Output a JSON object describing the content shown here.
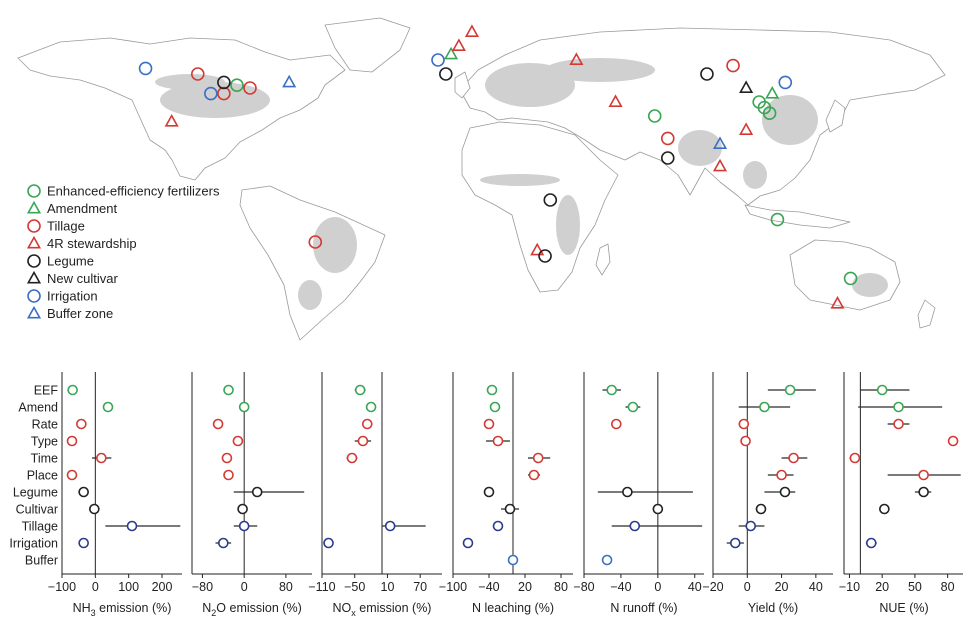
{
  "legend": {
    "items": [
      {
        "label": "Enhanced-efficiency fertilizers",
        "shape": "circle",
        "color": "#3aa655"
      },
      {
        "label": "Amendment",
        "shape": "triangle",
        "color": "#3aa655"
      },
      {
        "label": "Tillage",
        "shape": "circle",
        "color": "#d33a34"
      },
      {
        "label": "4R stewardship",
        "shape": "triangle",
        "color": "#d33a34"
      },
      {
        "label": "Legume",
        "shape": "circle",
        "color": "#222222"
      },
      {
        "label": "New cultivar",
        "shape": "triangle",
        "color": "#222222"
      },
      {
        "label": "Irrigation",
        "shape": "circle",
        "color": "#3a6fc4"
      },
      {
        "label": "Buffer zone",
        "shape": "triangle",
        "color": "#3a6fc4"
      }
    ]
  },
  "colors": {
    "green": "#3aa655",
    "red": "#d33a34",
    "black": "#222222",
    "blue": "#3a6fc4",
    "navy": "#2b3a8f",
    "land": "#ffffff",
    "border": "#9a9a9a",
    "cropland": "#c8c8c8"
  },
  "map_markers": [
    {
      "group": "green",
      "shape": "circle",
      "lon": 115,
      "lat": 35
    },
    {
      "group": "green",
      "shape": "circle",
      "lon": 117,
      "lat": 33
    },
    {
      "group": "green",
      "shape": "circle",
      "lon": 119,
      "lat": 31
    },
    {
      "group": "green",
      "shape": "triangle",
      "lon": 120,
      "lat": 38
    },
    {
      "group": "green",
      "shape": "circle",
      "lon": 75,
      "lat": 30
    },
    {
      "group": "green",
      "shape": "circle",
      "lon": -85,
      "lat": 41
    },
    {
      "group": "green",
      "shape": "triangle",
      "lon": -3,
      "lat": 52
    },
    {
      "group": "green",
      "shape": "circle",
      "lon": 150,
      "lat": -28
    },
    {
      "group": "green",
      "shape": "circle",
      "lon": 122,
      "lat": -7
    },
    {
      "group": "red",
      "shape": "circle",
      "lon": -100,
      "lat": 45
    },
    {
      "group": "red",
      "shape": "circle",
      "lon": -90,
      "lat": 38
    },
    {
      "group": "red",
      "shape": "circle",
      "lon": -80,
      "lat": 40
    },
    {
      "group": "red",
      "shape": "circle",
      "lon": -55,
      "lat": -15
    },
    {
      "group": "red",
      "shape": "circle",
      "lon": 105,
      "lat": 48
    },
    {
      "group": "red",
      "shape": "circle",
      "lon": 80,
      "lat": 22
    },
    {
      "group": "red",
      "shape": "triangle",
      "lon": 5,
      "lat": 60
    },
    {
      "group": "red",
      "shape": "triangle",
      "lon": 0,
      "lat": 55
    },
    {
      "group": "red",
      "shape": "triangle",
      "lon": 45,
      "lat": 50
    },
    {
      "group": "red",
      "shape": "triangle",
      "lon": 60,
      "lat": 35
    },
    {
      "group": "red",
      "shape": "triangle",
      "lon": 110,
      "lat": 25
    },
    {
      "group": "red",
      "shape": "triangle",
      "lon": 100,
      "lat": 12
    },
    {
      "group": "red",
      "shape": "triangle",
      "lon": -110,
      "lat": 28
    },
    {
      "group": "red",
      "shape": "triangle",
      "lon": 30,
      "lat": -18
    },
    {
      "group": "red",
      "shape": "triangle",
      "lon": 145,
      "lat": -37
    },
    {
      "group": "black",
      "shape": "circle",
      "lon": -90,
      "lat": 42
    },
    {
      "group": "black",
      "shape": "circle",
      "lon": 35,
      "lat": 0
    },
    {
      "group": "black",
      "shape": "circle",
      "lon": 33,
      "lat": -20
    },
    {
      "group": "black",
      "shape": "circle",
      "lon": 80,
      "lat": 15
    },
    {
      "group": "black",
      "shape": "circle",
      "lon": 95,
      "lat": 45
    },
    {
      "group": "black",
      "shape": "circle",
      "lon": -5,
      "lat": 45
    },
    {
      "group": "black",
      "shape": "triangle",
      "lon": 110,
      "lat": 40
    },
    {
      "group": "blue",
      "shape": "circle",
      "lon": -120,
      "lat": 47
    },
    {
      "group": "blue",
      "shape": "circle",
      "lon": -95,
      "lat": 38
    },
    {
      "group": "blue",
      "shape": "circle",
      "lon": -8,
      "lat": 50
    },
    {
      "group": "blue",
      "shape": "circle",
      "lon": 125,
      "lat": 42
    },
    {
      "group": "blue",
      "shape": "triangle",
      "lon": -65,
      "lat": 42
    },
    {
      "group": "blue",
      "shape": "triangle",
      "lon": 100,
      "lat": 20
    }
  ],
  "chart_data": {
    "type": "scatter",
    "subtype": "forest-plot",
    "categories": [
      "EEF",
      "Amend",
      "Rate",
      "Type",
      "Time",
      "Place",
      "Legume",
      "Cultivar",
      "Tillage",
      "Irrigation",
      "Buffer"
    ],
    "category_colors": [
      "green",
      "green",
      "red",
      "red",
      "red",
      "red",
      "black",
      "black",
      "navy",
      "navy",
      "blue"
    ],
    "panels": [
      {
        "xlabel_pre": "NH",
        "xlabel_sub": "3",
        "xlabel_post": " emission (%)",
        "xlim": [
          -100,
          260
        ],
        "ticks": [
          -100,
          0,
          100,
          200
        ],
        "tick_labels": [
          "-100",
          "0",
          "100",
          "200"
        ],
        "points": [
          {
            "cat": "EEF",
            "mean": -68,
            "lo": -78,
            "hi": -58
          },
          {
            "cat": "Amend",
            "mean": 38,
            "lo": 33,
            "hi": 43
          },
          {
            "cat": "Rate",
            "mean": -42,
            "lo": -48,
            "hi": -36
          },
          {
            "cat": "Type",
            "mean": -70,
            "lo": -76,
            "hi": -64
          },
          {
            "cat": "Time",
            "mean": 18,
            "lo": -10,
            "hi": 48
          },
          {
            "cat": "Place",
            "mean": -70,
            "lo": -76,
            "hi": -64
          },
          {
            "cat": "Legume",
            "mean": -35,
            "lo": -40,
            "hi": -30
          },
          {
            "cat": "Cultivar",
            "mean": -3,
            "lo": -6,
            "hi": 0
          },
          {
            "cat": "Tillage",
            "mean": 110,
            "lo": 30,
            "hi": 255
          },
          {
            "cat": "Irrigation",
            "mean": -35,
            "lo": -48,
            "hi": -22
          }
        ]
      },
      {
        "xlabel_pre": "N",
        "xlabel_sub": "2",
        "xlabel_post": "O emission (%)",
        "xlim": [
          -100,
          130
        ],
        "ticks": [
          -80,
          0,
          80
        ],
        "tick_labels": [
          "-80",
          "0",
          "80"
        ],
        "points": [
          {
            "cat": "EEF",
            "mean": -30,
            "lo": -34,
            "hi": -26
          },
          {
            "cat": "Amend",
            "mean": 0,
            "lo": -8,
            "hi": 8
          },
          {
            "cat": "Rate",
            "mean": -50,
            "lo": -55,
            "hi": -45
          },
          {
            "cat": "Type",
            "mean": -12,
            "lo": -18,
            "hi": -6
          },
          {
            "cat": "Time",
            "mean": -33,
            "lo": -40,
            "hi": -26
          },
          {
            "cat": "Place",
            "mean": -30,
            "lo": -38,
            "hi": -22
          },
          {
            "cat": "Legume",
            "mean": 25,
            "lo": -20,
            "hi": 115
          },
          {
            "cat": "Cultivar",
            "mean": -3,
            "lo": -7,
            "hi": 1
          },
          {
            "cat": "Tillage",
            "mean": 0,
            "lo": -20,
            "hi": 25
          },
          {
            "cat": "Irrigation",
            "mean": -40,
            "lo": -55,
            "hi": -25
          }
        ]
      },
      {
        "xlabel_pre": "NO",
        "xlabel_sub": "x",
        "xlabel_post": " emission (%)",
        "xlim": [
          -110,
          110
        ],
        "ticks": [
          -110,
          -50,
          10,
          70
        ],
        "tick_labels": [
          "-110",
          "-50",
          "10",
          "70"
        ],
        "points": [
          {
            "cat": "EEF",
            "mean": -40,
            "lo": -50,
            "hi": -30
          },
          {
            "cat": "Amend",
            "mean": -20,
            "lo": -26,
            "hi": -14
          },
          {
            "cat": "Rate",
            "mean": -27,
            "lo": -33,
            "hi": -20
          },
          {
            "cat": "Type",
            "mean": -35,
            "lo": -50,
            "hi": -20
          },
          {
            "cat": "Time",
            "mean": -55,
            "lo": -65,
            "hi": -45
          },
          {
            "cat": "Tillage",
            "mean": 15,
            "lo": 0,
            "hi": 80
          },
          {
            "cat": "Irrigation",
            "mean": -98,
            "lo": -102,
            "hi": -94
          }
        ]
      },
      {
        "xlabel_pre": "N leaching (%)",
        "xlabel_sub": "",
        "xlabel_post": "",
        "xlim": [
          -100,
          100
        ],
        "ticks": [
          -100,
          -40,
          20,
          80
        ],
        "tick_labels": [
          "-100",
          "-40",
          "20",
          "80"
        ],
        "points": [
          {
            "cat": "EEF",
            "mean": -35,
            "lo": -42,
            "hi": -28
          },
          {
            "cat": "Amend",
            "mean": -30,
            "lo": -36,
            "hi": -24
          },
          {
            "cat": "Rate",
            "mean": -40,
            "lo": -45,
            "hi": -35
          },
          {
            "cat": "Type",
            "mean": -25,
            "lo": -45,
            "hi": -5
          },
          {
            "cat": "Time",
            "mean": 42,
            "lo": 25,
            "hi": 62
          },
          {
            "cat": "Place",
            "mean": 35,
            "lo": 25,
            "hi": 45
          },
          {
            "cat": "Legume",
            "mean": -40,
            "lo": -45,
            "hi": -35
          },
          {
            "cat": "Cultivar",
            "mean": -5,
            "lo": -20,
            "hi": 10
          },
          {
            "cat": "Tillage",
            "mean": -25,
            "lo": -32,
            "hi": -18
          },
          {
            "cat": "Irrigation",
            "mean": -75,
            "lo": -82,
            "hi": -68
          },
          {
            "cat": "Buffer",
            "mean": 0,
            "lo": -4,
            "hi": 4
          }
        ]
      },
      {
        "xlabel_pre": "N runoff (%)",
        "xlabel_sub": "",
        "xlabel_post": "",
        "xlim": [
          -80,
          50
        ],
        "ticks": [
          -80,
          -40,
          0,
          40
        ],
        "tick_labels": [
          "-80",
          "-40",
          "0",
          "40"
        ],
        "points": [
          {
            "cat": "EEF",
            "mean": -50,
            "lo": -60,
            "hi": -40
          },
          {
            "cat": "Amend",
            "mean": -27,
            "lo": -35,
            "hi": -19
          },
          {
            "cat": "Rate",
            "mean": -45,
            "lo": -49,
            "hi": -41
          },
          {
            "cat": "Legume",
            "mean": -33,
            "lo": -65,
            "hi": 38
          },
          {
            "cat": "Cultivar",
            "mean": 0,
            "lo": -3,
            "hi": 3
          },
          {
            "cat": "Tillage",
            "mean": -25,
            "lo": -50,
            "hi": 48
          },
          {
            "cat": "Buffer",
            "mean": -55,
            "lo": -59,
            "hi": -51
          }
        ]
      },
      {
        "xlabel_pre": "Yield (%)",
        "xlabel_sub": "",
        "xlabel_post": "",
        "xlim": [
          -20,
          50
        ],
        "ticks": [
          -20,
          0,
          20,
          40
        ],
        "tick_labels": [
          "-20",
          "0",
          "20",
          "40"
        ],
        "points": [
          {
            "cat": "EEF",
            "mean": 25,
            "lo": 12,
            "hi": 40
          },
          {
            "cat": "Amend",
            "mean": 10,
            "lo": -5,
            "hi": 25
          },
          {
            "cat": "Rate",
            "mean": -2,
            "lo": -5,
            "hi": 1
          },
          {
            "cat": "Type",
            "mean": -1,
            "lo": -3,
            "hi": 1
          },
          {
            "cat": "Time",
            "mean": 27,
            "lo": 20,
            "hi": 35
          },
          {
            "cat": "Place",
            "mean": 20,
            "lo": 12,
            "hi": 27
          },
          {
            "cat": "Legume",
            "mean": 22,
            "lo": 10,
            "hi": 28
          },
          {
            "cat": "Cultivar",
            "mean": 8,
            "lo": 5,
            "hi": 11
          },
          {
            "cat": "Tillage",
            "mean": 2,
            "lo": -5,
            "hi": 10
          },
          {
            "cat": "Irrigation",
            "mean": -7,
            "lo": -12,
            "hi": -2
          }
        ]
      },
      {
        "xlabel_pre": "NUE (%)",
        "xlabel_sub": "",
        "xlabel_post": "",
        "xlim": [
          -15,
          95
        ],
        "ticks": [
          -10,
          20,
          50,
          80
        ],
        "tick_labels": [
          "-10",
          "20",
          "50",
          "80"
        ],
        "points": [
          {
            "cat": "EEF",
            "mean": 20,
            "lo": 0,
            "hi": 45
          },
          {
            "cat": "Amend",
            "mean": 35,
            "lo": -2,
            "hi": 75
          },
          {
            "cat": "Rate",
            "mean": 35,
            "lo": 25,
            "hi": 45
          },
          {
            "cat": "Type",
            "mean": 85,
            "lo": 83,
            "hi": 87
          },
          {
            "cat": "Time",
            "mean": -5,
            "lo": -10,
            "hi": 0
          },
          {
            "cat": "Place",
            "mean": 58,
            "lo": 25,
            "hi": 92
          },
          {
            "cat": "Legume",
            "mean": 58,
            "lo": 50,
            "hi": 65
          },
          {
            "cat": "Cultivar",
            "mean": 22,
            "lo": 20,
            "hi": 24
          },
          {
            "cat": "Irrigation",
            "mean": 10,
            "lo": 5,
            "hi": 15
          }
        ]
      }
    ]
  }
}
